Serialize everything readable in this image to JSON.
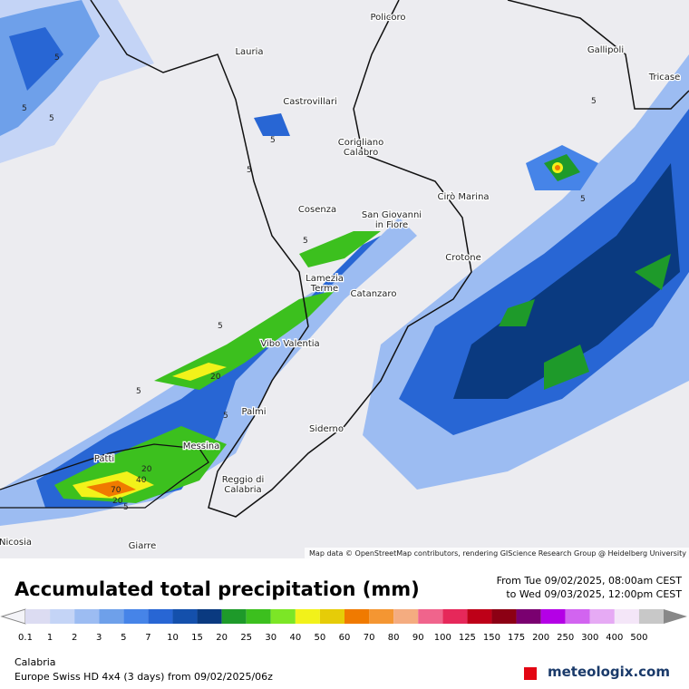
{
  "map": {
    "cities": [
      "Policoro",
      "Lauria",
      "Gallipoli",
      "Tricase",
      "Castrovillari",
      "Corigliano\nCalabro",
      "Cosenza",
      "San Giovanni\nin Fiore",
      "Cirò Marina",
      "Crotone",
      "Lamezia\nTerme",
      "Catanzaro",
      "Vibo Valentia",
      "Palmi",
      "Siderno",
      "Messina",
      "Reggio di\nCalabria",
      "Patti",
      "Giarre",
      "Nicosia"
    ],
    "contour_labels": [
      "5",
      "5",
      "5",
      "5",
      "5",
      "5",
      "5",
      "5",
      "5",
      "5",
      "5",
      "5",
      "20",
      "20",
      "20",
      "40",
      "70"
    ],
    "attribution": "Map data © OpenStreetMap contributors, rendering GIScience Research Group @ Heidelberg University"
  },
  "header": {
    "title": "Accumulated total precipitation (mm)",
    "from": "From Tue 09/02/2025, 08:00am CEST",
    "to": "to Wed 09/03/2025, 12:00pm CEST"
  },
  "legend": {
    "steps": [
      {
        "label": "0.1",
        "color": "#dcdcf2"
      },
      {
        "label": "1",
        "color": "#c4d4f6"
      },
      {
        "label": "2",
        "color": "#9cbcf2"
      },
      {
        "label": "3",
        "color": "#6ea0ea"
      },
      {
        "label": "5",
        "color": "#4684e8"
      },
      {
        "label": "7",
        "color": "#2866d4"
      },
      {
        "label": "10",
        "color": "#1450ac"
      },
      {
        "label": "15",
        "color": "#0a3a80"
      },
      {
        "label": "20",
        "color": "#1e9a2a"
      },
      {
        "label": "25",
        "color": "#3cc01e"
      },
      {
        "label": "30",
        "color": "#7ce626"
      },
      {
        "label": "40",
        "color": "#f2f21a"
      },
      {
        "label": "50",
        "color": "#e6cc08"
      },
      {
        "label": "60",
        "color": "#f07a00"
      },
      {
        "label": "70",
        "color": "#f49632"
      },
      {
        "label": "80",
        "color": "#f4ac80"
      },
      {
        "label": "90",
        "color": "#f0648c"
      },
      {
        "label": "100",
        "color": "#e6285a"
      },
      {
        "label": "125",
        "color": "#be0018"
      },
      {
        "label": "150",
        "color": "#8c0014"
      },
      {
        "label": "175",
        "color": "#7a0070"
      },
      {
        "label": "200",
        "color": "#b400e6"
      },
      {
        "label": "250",
        "color": "#d264f0"
      },
      {
        "label": "300",
        "color": "#e6aaf4"
      },
      {
        "label": "400",
        "color": "#f4e6f8"
      },
      {
        "label": "500",
        "color": "#c8c8c8"
      }
    ]
  },
  "footer": {
    "region": "Calabria",
    "model": "Europe Swiss HD 4x4 (3 days) from 09/02/2025/06z",
    "brand": "meteologix.com"
  }
}
